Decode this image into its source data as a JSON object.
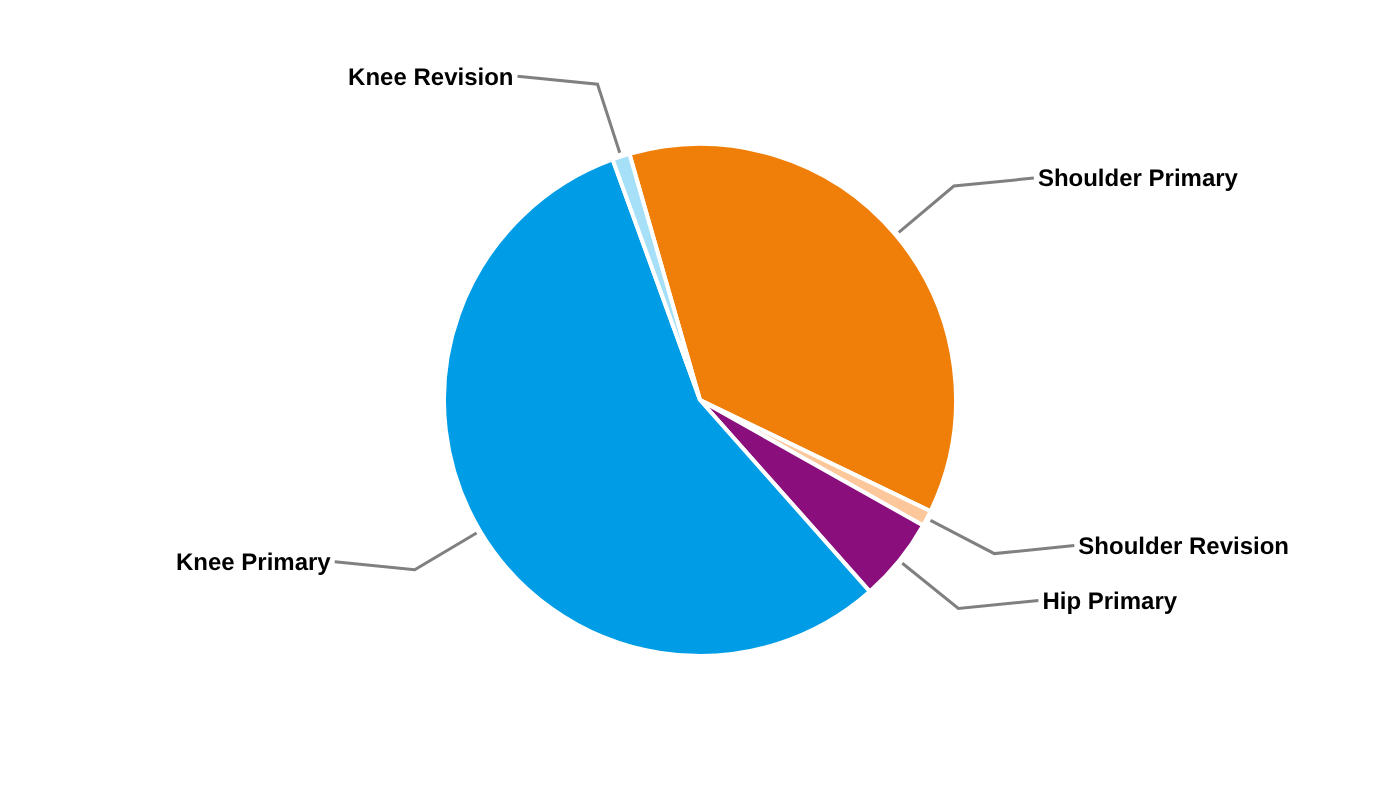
{
  "chart_data": {
    "type": "pie",
    "categories": [
      "Shoulder Primary",
      "Shoulder Revision",
      "Hip Primary",
      "Knee Primary",
      "Knee Revision"
    ],
    "values": [
      36.6,
      1.0,
      5.3,
      56.0,
      1.1
    ],
    "colors": [
      "#f07f09",
      "#fcc89b",
      "#8a0f7d",
      "#009de6",
      "#a6e0f8"
    ]
  }
}
